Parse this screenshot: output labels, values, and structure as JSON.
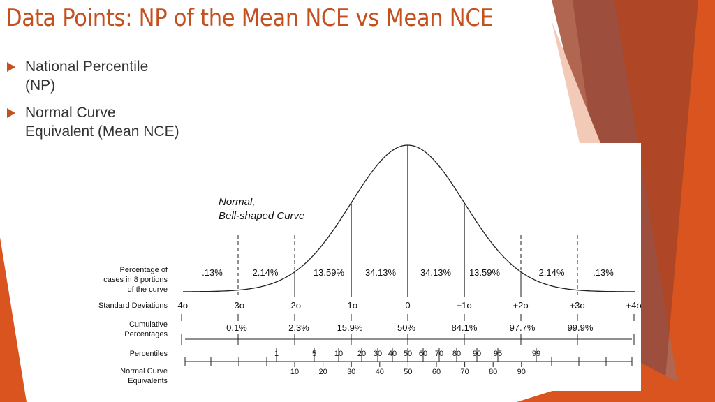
{
  "title": "Data Points: NP of the Mean NCE vs Mean NCE",
  "bullets": [
    "National Percentile (NP)",
    "Normal Curve Equivalent (Mean NCE)"
  ],
  "figure": {
    "caption": [
      "Normal,",
      "Bell-shaped Curve"
    ],
    "row_labels": {
      "portions": [
        "Percentage of",
        "cases in 8 portions",
        "of the curve"
      ],
      "standard_deviations": [
        "Standard Deviations"
      ],
      "cumulative": [
        "Cumulative",
        "Percentages"
      ],
      "percentiles": [
        "Percentiles"
      ],
      "nce": [
        "Normal Curve",
        "Equivalents"
      ]
    },
    "portion_percentages": [
      ".13%",
      "2.14%",
      "13.59%",
      "34.13%",
      "34.13%",
      "13.59%",
      "2.14%",
      ".13%"
    ],
    "standard_deviations": [
      "-4σ",
      "-3σ",
      "-2σ",
      "-1σ",
      "0",
      "+1σ",
      "+2σ",
      "+3σ",
      "+4σ"
    ],
    "cumulative_percentages": [
      "0.1%",
      "2.3%",
      "15.9%",
      "50%",
      "84.1%",
      "97.7%",
      "99.9%"
    ],
    "percentiles": [
      1,
      5,
      10,
      20,
      30,
      40,
      50,
      60,
      70,
      80,
      90,
      95,
      99
    ],
    "nce": [
      10,
      20,
      30,
      40,
      50,
      60,
      70,
      80,
      90
    ]
  }
}
